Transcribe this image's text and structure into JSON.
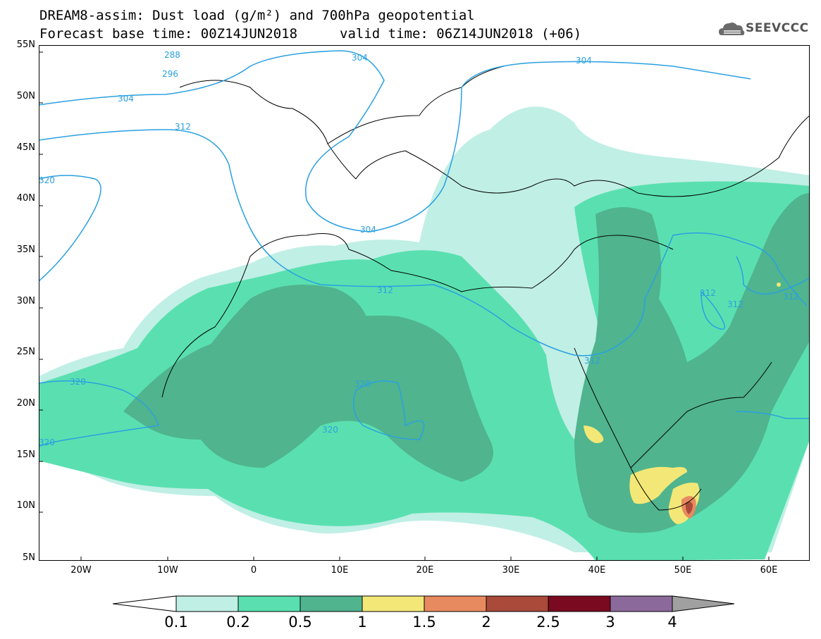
{
  "title": {
    "line1": "DREAM8-assim: Dust load (g/m²) and 700hPa geopotential",
    "line2": "Forecast base time: 00Z14JUN2018",
    "line3": "valid time: 06Z14JUN2018 (+06)"
  },
  "logo": {
    "text": "SEEVCCC",
    "icon": "cloud-logo-icon"
  },
  "axes": {
    "lat_labels": [
      "55N",
      "50N",
      "45N",
      "40N",
      "35N",
      "30N",
      "25N",
      "20N",
      "15N",
      "10N",
      "5N"
    ],
    "lon_labels": [
      "20W",
      "10W",
      "0",
      "10E",
      "20E",
      "30E",
      "40E",
      "50E",
      "60E"
    ]
  },
  "contours": {
    "color": "#2aa0e0",
    "labels": [
      "288",
      "296",
      "304",
      "304",
      "304",
      "312",
      "320",
      "320",
      "320",
      "304",
      "312",
      "312",
      "312",
      "312",
      "312",
      "320",
      "320"
    ]
  },
  "colorbar": {
    "ticks": [
      "0.1",
      "0.2",
      "0.5",
      "1",
      "1.5",
      "2",
      "2.5",
      "3",
      "4"
    ],
    "colors": [
      "#ffffff",
      "#c0efe5",
      "#5ae0b0",
      "#50b48e",
      "#f3e877",
      "#e88a60",
      "#aa4a3a",
      "#7a0a20",
      "#8b6a9b",
      "#a0a0a0"
    ]
  },
  "legend_colors": {
    "low": "#c0efe5",
    "mid": "#5ae0b0",
    "high": "#50b48e",
    "peak": "#f3e877",
    "max": "#e88a60",
    "top": "#aa4a3a"
  }
}
